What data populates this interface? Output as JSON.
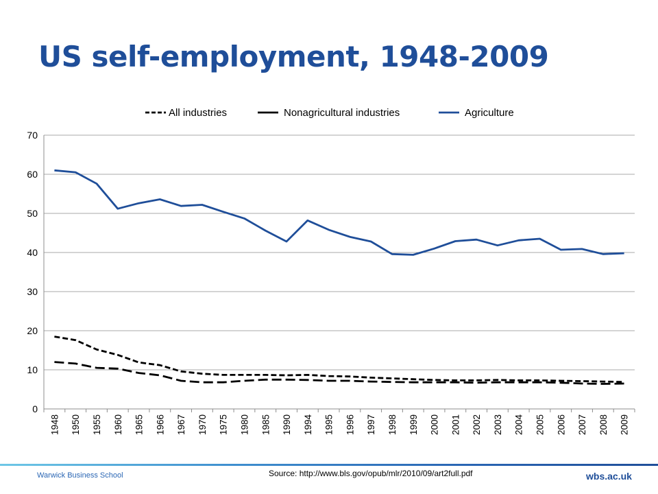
{
  "slide": {
    "title": "US self-employment, 1948-2009",
    "source": "Source: http://www.bls.gov/opub/mlr/2010/09/art2full.pdf",
    "footer_left": "Warwick Business School",
    "footer_right": "wbs.ac.uk"
  },
  "chart_data": {
    "type": "line",
    "title": "",
    "xlabel": "",
    "ylabel": "",
    "ylim": [
      0,
      70
    ],
    "yticks": [
      0,
      10,
      20,
      30,
      40,
      50,
      60,
      70
    ],
    "grid": "horizontal",
    "legend_position": "top",
    "categories": [
      "1948",
      "1950",
      "1955",
      "1960",
      "1965",
      "1966",
      "1967",
      "1970",
      "1975",
      "1980",
      "1985",
      "1990",
      "1994",
      "1995",
      "1996",
      "1997",
      "1998",
      "1999",
      "2000",
      "2001",
      "2002",
      "2003",
      "2004",
      "2005",
      "2006",
      "2007",
      "2008",
      "2009"
    ],
    "series": [
      {
        "name": "All industries",
        "style": "dashed",
        "color": "#000000",
        "values": [
          18.5,
          17.6,
          15.2,
          13.8,
          11.9,
          11.2,
          9.6,
          9.0,
          8.7,
          8.7,
          8.7,
          8.6,
          8.7,
          8.4,
          8.3,
          8.0,
          7.8,
          7.6,
          7.4,
          7.3,
          7.3,
          7.4,
          7.3,
          7.3,
          7.2,
          7.1,
          7.0,
          6.9
        ]
      },
      {
        "name": "Nonagricultural industries",
        "style": "longdash",
        "color": "#000000",
        "values": [
          12.0,
          11.6,
          10.5,
          10.3,
          9.2,
          8.6,
          7.2,
          6.8,
          6.8,
          7.2,
          7.5,
          7.5,
          7.4,
          7.2,
          7.2,
          7.0,
          6.9,
          6.8,
          6.8,
          6.8,
          6.7,
          6.8,
          6.8,
          6.8,
          6.7,
          6.5,
          6.4,
          6.5
        ]
      },
      {
        "name": "Agriculture",
        "style": "solid",
        "color": "#1f4e99",
        "values": [
          61.0,
          60.5,
          57.6,
          51.2,
          52.6,
          53.6,
          51.9,
          52.2,
          50.4,
          48.7,
          45.6,
          42.8,
          48.2,
          45.8,
          44.0,
          42.8,
          39.6,
          39.4,
          41.0,
          42.9,
          43.3,
          41.8,
          43.1,
          43.5,
          40.7,
          40.9,
          39.6,
          39.8
        ]
      }
    ]
  }
}
